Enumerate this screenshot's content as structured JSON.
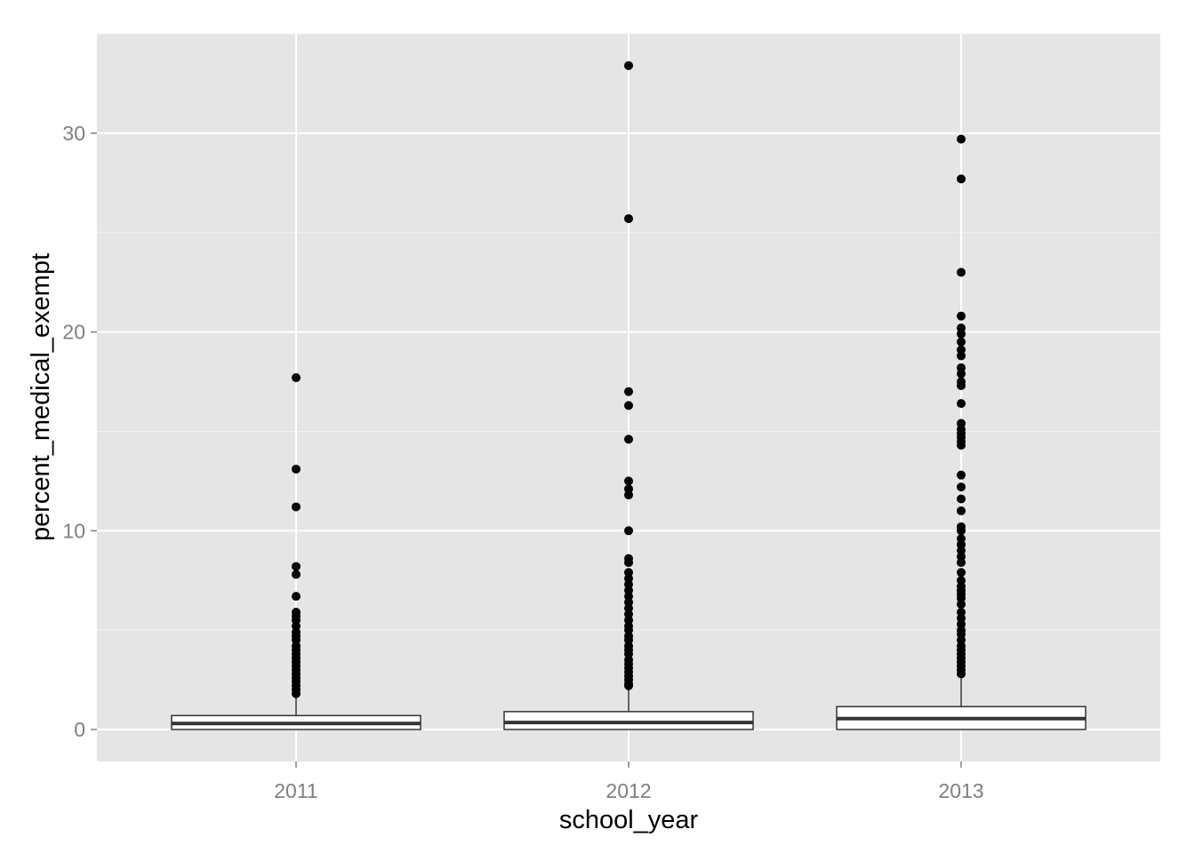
{
  "chart_data": {
    "type": "boxplot",
    "xlabel": "school_year",
    "ylabel": "percent_medical_exempt",
    "categories": [
      "2011",
      "2012",
      "2013"
    ],
    "ylim": [
      -1.6,
      35.0
    ],
    "yticks": [
      0,
      10,
      20,
      30
    ],
    "grid": true,
    "legend": "none",
    "colors": {
      "panel_background": "#e5e5e5",
      "grid_major": "#ffffff",
      "grid_minor": "#f2f2f2",
      "box_fill": "#ffffff",
      "box_stroke": "#333333",
      "outlier": "#000000",
      "tick_label": "#7f7f7f"
    },
    "boxes": [
      {
        "category": "2011",
        "lower_whisker": 0,
        "q1": 0,
        "median": 0.3,
        "q3": 0.7,
        "upper_whisker": 1.6,
        "outliers": [
          17.7,
          13.1,
          11.2,
          8.2,
          7.8,
          6.7,
          5.9,
          5.7,
          5.5,
          5.2,
          4.9,
          4.7,
          4.5,
          4.2,
          4.0,
          3.8,
          3.6,
          3.4,
          3.2,
          3.0,
          2.8,
          2.6,
          2.4,
          2.2,
          2.0,
          1.8
        ]
      },
      {
        "category": "2012",
        "lower_whisker": 0,
        "q1": 0,
        "median": 0.35,
        "q3": 0.9,
        "upper_whisker": 2.1,
        "outliers": [
          33.4,
          25.7,
          17.0,
          16.3,
          14.6,
          12.5,
          12.1,
          11.8,
          10.0,
          8.6,
          8.4,
          7.9,
          7.6,
          7.3,
          7.0,
          6.7,
          6.4,
          6.1,
          5.8,
          5.5,
          5.2,
          5.0,
          4.7,
          4.5,
          4.2,
          4.0,
          3.8,
          3.5,
          3.3,
          3.1,
          2.9,
          2.7,
          2.5,
          2.3,
          2.2
        ]
      },
      {
        "category": "2013",
        "lower_whisker": 0,
        "q1": 0,
        "median": 0.55,
        "q3": 1.15,
        "upper_whisker": 2.7,
        "outliers": [
          29.7,
          27.7,
          23.0,
          20.8,
          20.2,
          19.9,
          19.5,
          19.1,
          18.8,
          18.2,
          17.9,
          17.5,
          17.3,
          16.4,
          15.4,
          15.1,
          14.9,
          14.7,
          14.5,
          14.3,
          12.8,
          12.2,
          11.6,
          11.0,
          10.2,
          10.0,
          9.6,
          9.3,
          9.0,
          8.7,
          8.4,
          7.9,
          7.5,
          7.2,
          7.0,
          6.8,
          6.6,
          6.3,
          5.9,
          5.6,
          5.3,
          5.0,
          4.8,
          4.5,
          4.2,
          4.0,
          3.8,
          3.6,
          3.4,
          3.2,
          3.0,
          2.8
        ]
      }
    ]
  }
}
